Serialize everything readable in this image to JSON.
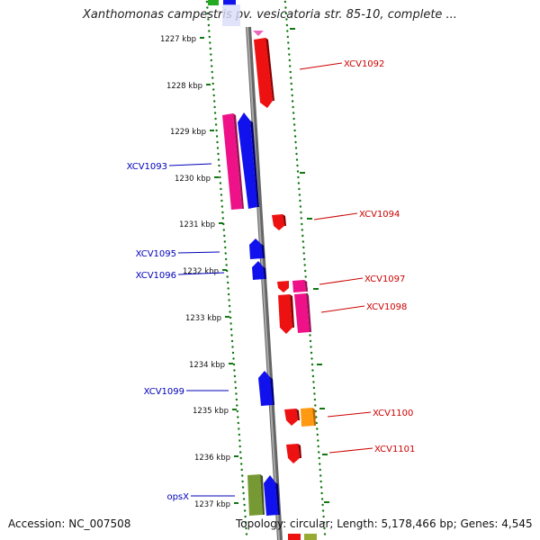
{
  "title": "Xanthomonas campestris pv. vesicatoria str. 85-10, complete ...",
  "footer": {
    "accession": "Accession: NC_007508",
    "summary": "Topology: circular; Length: 5,178,466 bp; Genes: 4,545"
  },
  "colors": {
    "red": "#ee1111",
    "blue": "#1111ee",
    "pink": "#ee1188",
    "olive": "#779933",
    "orange": "#ff9911",
    "green": "#22aa22",
    "backbone": "#888888",
    "dots": "#117711",
    "label_red": "#cc0000",
    "label_blue": "#0000bb"
  },
  "kbp_ticks": [
    "1227 kbp",
    "1228 kbp",
    "1229 kbp",
    "1230 kbp",
    "1231 kbp",
    "1232 kbp",
    "1233 kbp",
    "1234 kbp",
    "1235 kbp",
    "1236 kbp",
    "1237 kbp"
  ],
  "gene_labels": {
    "right": [
      "XCV1092",
      "XCV1094",
      "XCV1097",
      "XCV1098",
      "XCV1100",
      "XCV1101"
    ],
    "left": [
      "XCV1093",
      "XCV1095",
      "XCV1096",
      "XCV1099",
      "opsX"
    ]
  }
}
